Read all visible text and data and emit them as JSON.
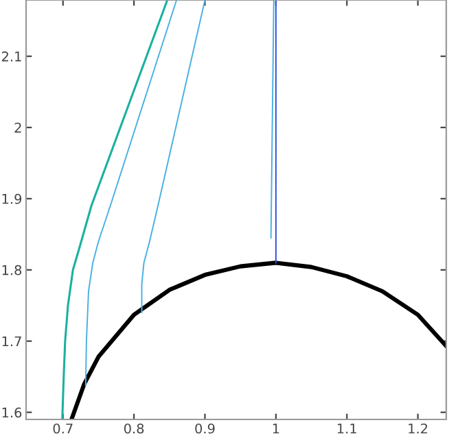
{
  "chart_data": {
    "type": "line",
    "xlim": [
      0.648,
      1.24
    ],
    "ylim": [
      1.59,
      2.179
    ],
    "xticks": [
      0.7,
      0.8,
      0.9,
      1,
      1.1,
      1.2
    ],
    "yticks": [
      1.6,
      1.7,
      1.8,
      1.9,
      2,
      2.1
    ],
    "grid": false,
    "legend": false,
    "series": [
      {
        "color": "#000000",
        "x": [
          0.712,
          0.73,
          0.75,
          0.8,
          0.85,
          0.9,
          0.95,
          1.0,
          1.05,
          1.1,
          1.15,
          1.2,
          1.24
        ],
        "values": [
          1.59,
          1.64,
          1.678,
          1.737,
          1.772,
          1.793,
          1.805,
          1.81,
          1.804,
          1.791,
          1.77,
          1.737,
          1.693
        ]
      },
      {
        "color": "#1ab0a0",
        "x": [
          0.699,
          0.701,
          0.703,
          0.707,
          0.714,
          0.722,
          0.74,
          0.847
        ],
        "values": [
          1.59,
          1.65,
          1.7,
          1.75,
          1.8,
          1.827,
          1.89,
          2.179
        ]
      },
      {
        "color": "#4ab0e0",
        "x": [
          0.732,
          0.733,
          0.736,
          0.742,
          0.75,
          0.767,
          0.86
        ],
        "values": [
          1.638,
          1.7,
          1.77,
          1.81,
          1.84,
          1.891,
          2.179
        ]
      },
      {
        "color": "#4ab0e0",
        "x": [
          0.811,
          0.811,
          0.814,
          0.822,
          0.834,
          0.9
        ],
        "values": [
          1.74,
          1.78,
          1.81,
          1.84,
          1.891,
          2.179
        ]
      },
      {
        "color": "#4ab0e0",
        "x": [
          0.993,
          0.997
        ],
        "values": [
          1.845,
          2.179
        ]
      },
      {
        "color": "#3050e0",
        "x": [
          1.0,
          1.0
        ],
        "values": [
          1.81,
          2.179
        ]
      }
    ]
  }
}
